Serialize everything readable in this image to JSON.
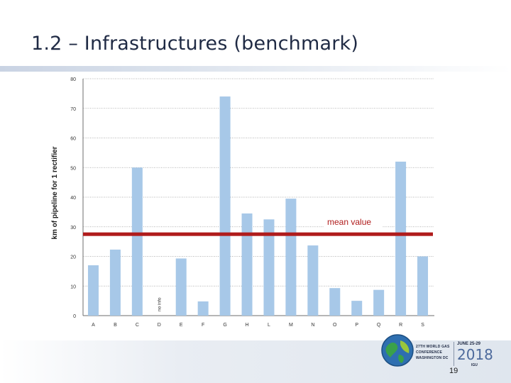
{
  "slide": {
    "title": "1.2 – Infrastructures (benchmark)",
    "page_number": "19"
  },
  "branding": {
    "line1": "27TH WORLD GAS",
    "line2": "CONFERENCE",
    "line3": "WASHINGTON DC",
    "dates": "JUNE 25-29",
    "year": "2018",
    "org": "IGU",
    "globe_colors": [
      "#2e6fb0",
      "#3aa14a",
      "#9ac63c"
    ]
  },
  "chart_data": {
    "type": "bar",
    "title": "",
    "xlabel": "",
    "ylabel": "km of pipeline for 1 rectifier",
    "categories": [
      "A",
      "B",
      "C",
      "D",
      "E",
      "F",
      "G",
      "H",
      "L",
      "M",
      "N",
      "O",
      "P",
      "Q",
      "R",
      "S"
    ],
    "values": [
      17,
      22.3,
      50,
      null,
      19.3,
      4.8,
      74,
      34.5,
      32.5,
      39.5,
      23.7,
      9.3,
      5,
      8.7,
      52,
      20
    ],
    "ylim": [
      0,
      80
    ],
    "yticks": [
      0,
      10,
      20,
      30,
      40,
      50,
      60,
      70,
      80
    ],
    "grid": true,
    "bar_color": "#a7c8e8",
    "annotations": [
      {
        "category": "D",
        "text": "no info"
      }
    ],
    "mean_line": {
      "value": 27.5,
      "label": "mean value",
      "color": "#b01c1c"
    }
  }
}
